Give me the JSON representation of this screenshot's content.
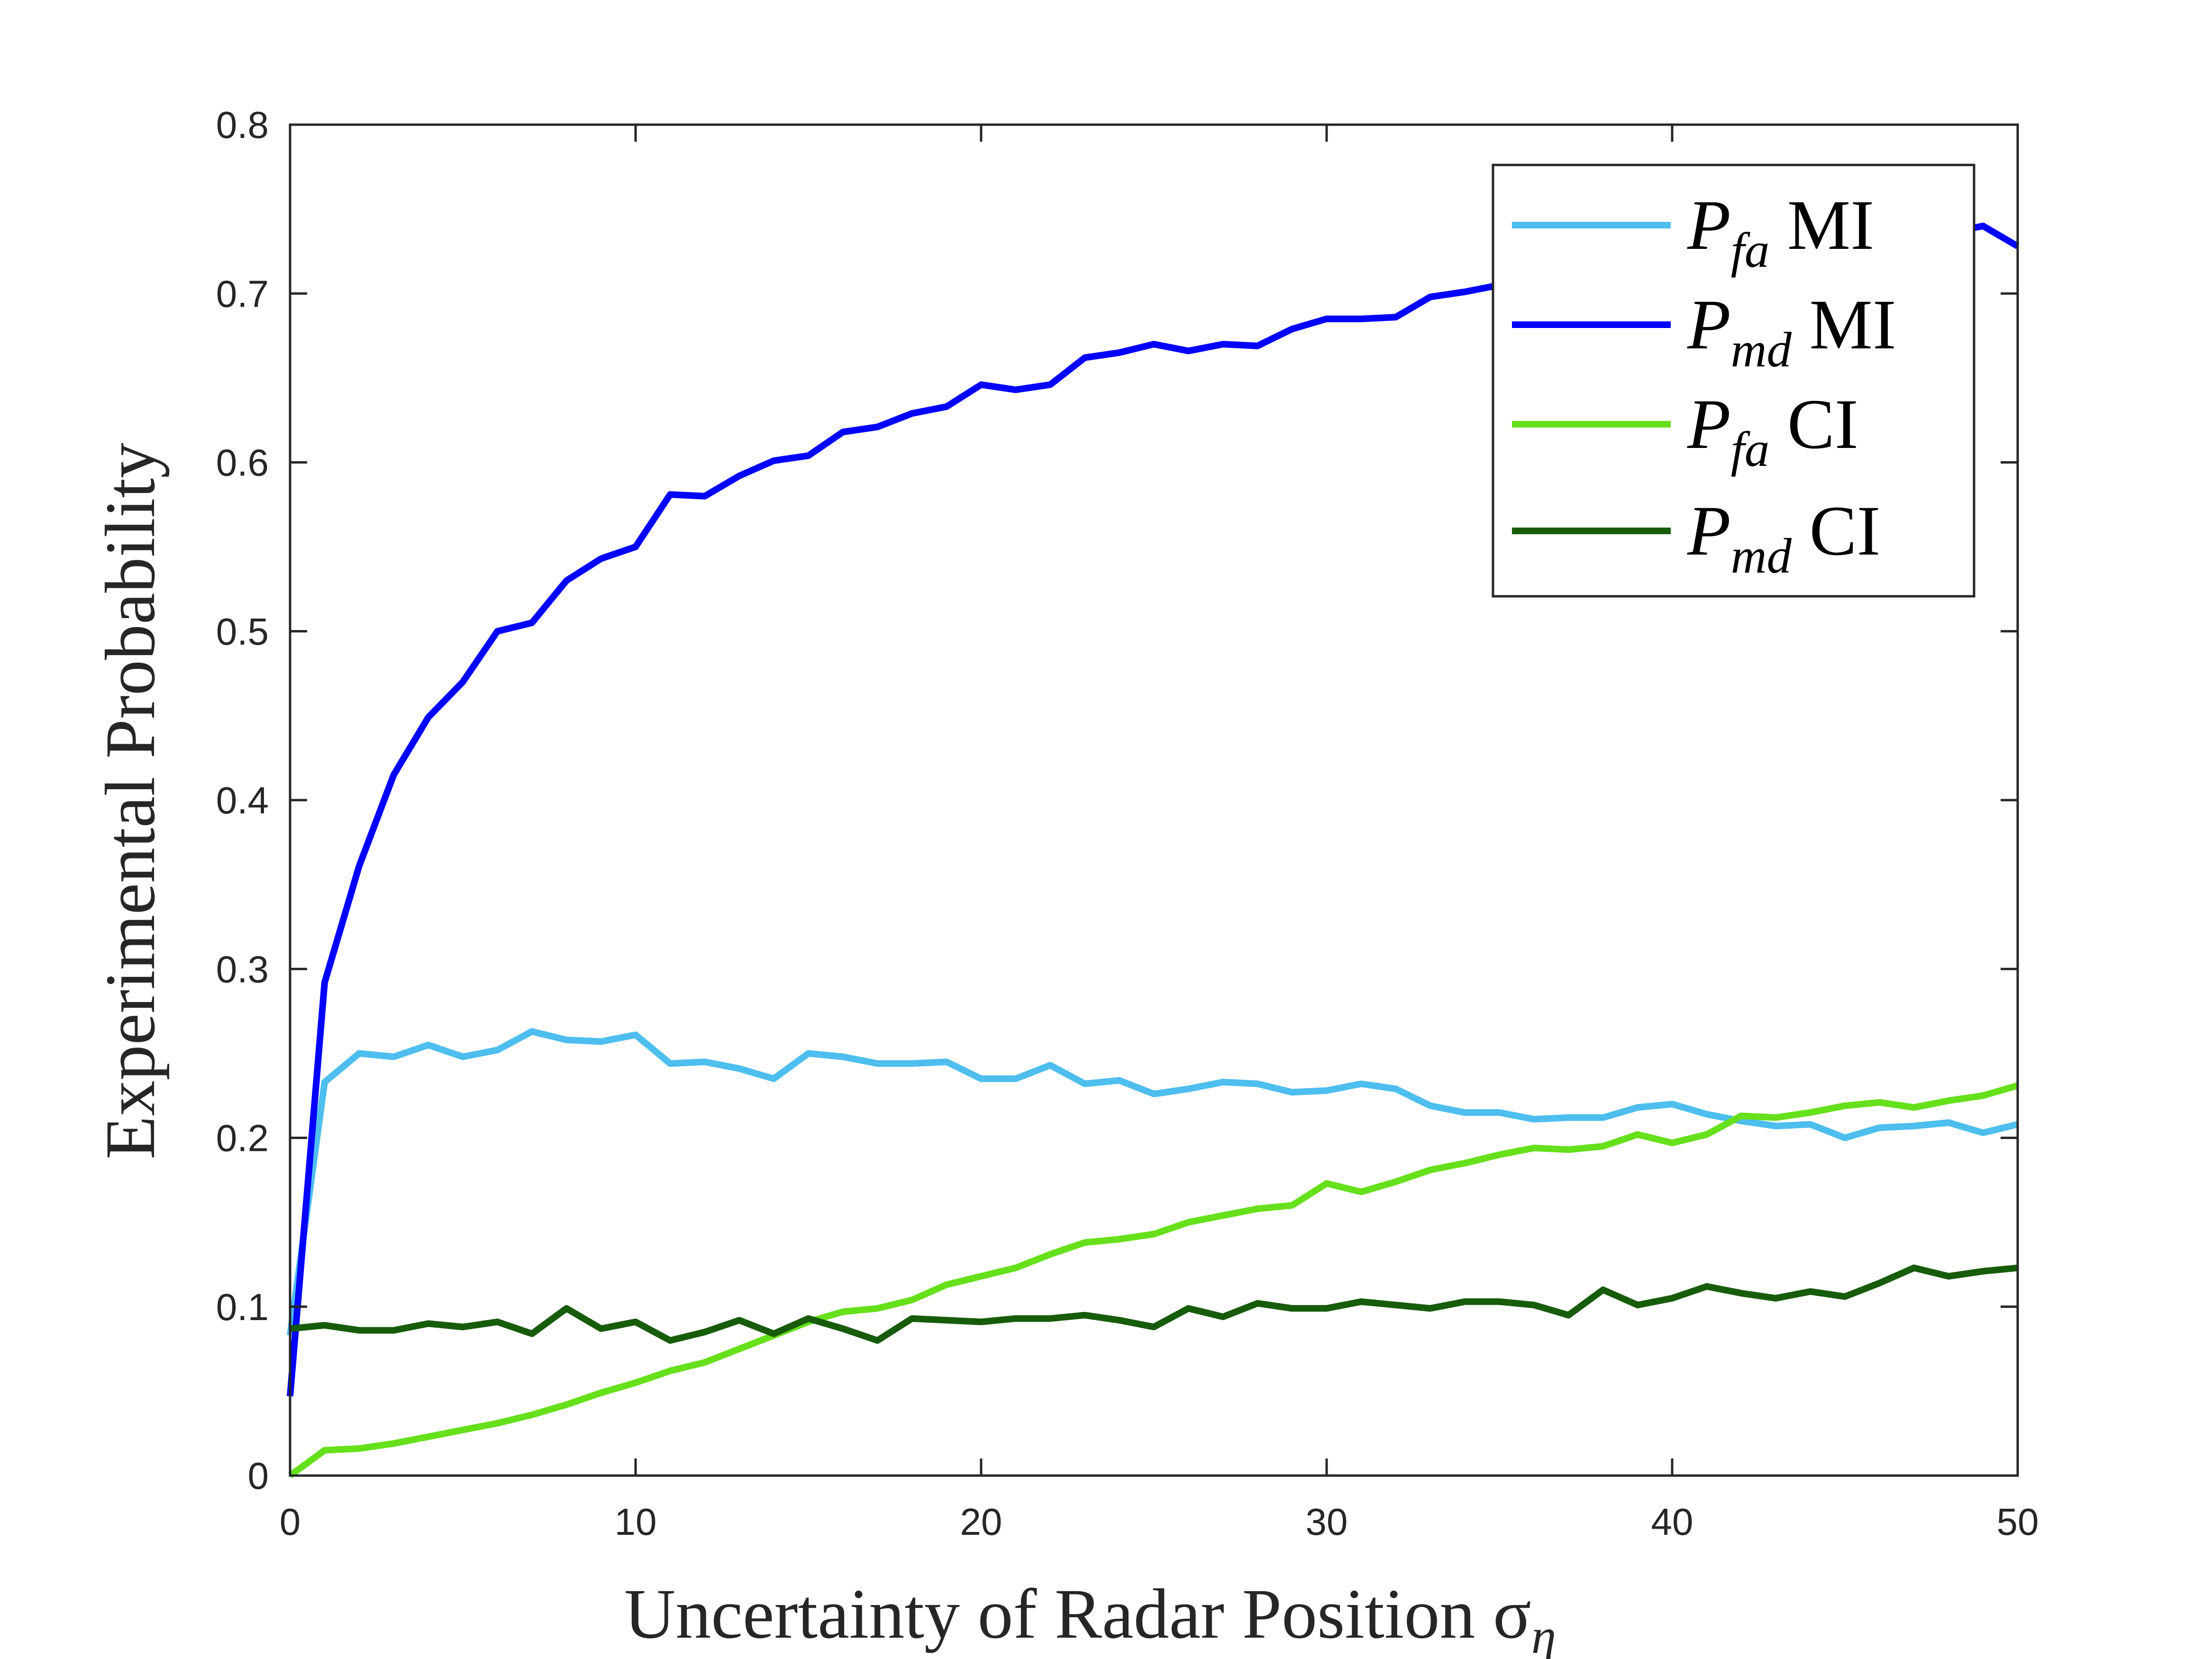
{
  "chart_data": {
    "type": "line",
    "title": "",
    "xlabel": "Uncertainty of Radar Position σ",
    "xlabel_subscript": "η",
    "ylabel": "Experimental Probability",
    "xlim": [
      0,
      50
    ],
    "ylim": [
      0,
      0.8
    ],
    "xticks": [
      0,
      10,
      20,
      30,
      40,
      50
    ],
    "yticks": [
      0,
      0.1,
      0.2,
      0.3,
      0.4,
      0.5,
      0.6,
      0.7,
      0.8
    ],
    "xtick_labels": [
      "0",
      "10",
      "20",
      "30",
      "40",
      "50"
    ],
    "ytick_labels": [
      "0",
      "0.1",
      "0.2",
      "0.3",
      "0.4",
      "0.5",
      "0.6",
      "0.7",
      "0.8"
    ],
    "grid": false,
    "legend_position": "top-right",
    "x": [
      0,
      1,
      2,
      3,
      4,
      5,
      6,
      7,
      8,
      9,
      10,
      11,
      12,
      13,
      14,
      15,
      16,
      17,
      18,
      19,
      20,
      21,
      22,
      23,
      24,
      25,
      26,
      27,
      28,
      29,
      30,
      31,
      32,
      33,
      34,
      35,
      36,
      37,
      38,
      39,
      40,
      41,
      42,
      43,
      44,
      45,
      46,
      47,
      48,
      49,
      50
    ],
    "series": [
      {
        "label_main": "P",
        "label_sub": "fa",
        "label_suffix": " MI",
        "color": "#4DBEEE",
        "values": [
          0.083,
          0.233,
          0.25,
          0.248,
          0.255,
          0.248,
          0.252,
          0.263,
          0.258,
          0.257,
          0.261,
          0.244,
          0.245,
          0.241,
          0.235,
          0.25,
          0.248,
          0.244,
          0.244,
          0.245,
          0.235,
          0.235,
          0.243,
          0.232,
          0.234,
          0.226,
          0.229,
          0.233,
          0.232,
          0.227,
          0.228,
          0.232,
          0.229,
          0.219,
          0.215,
          0.215,
          0.211,
          0.212,
          0.212,
          0.218,
          0.22,
          0.214,
          0.21,
          0.207,
          0.208,
          0.2,
          0.206,
          0.207,
          0.209,
          0.203,
          0.208
        ]
      },
      {
        "label_main": "P",
        "label_sub": "md",
        "label_suffix": " MI",
        "color": "#0000FF",
        "values": [
          0.047,
          0.292,
          0.361,
          0.415,
          0.449,
          0.47,
          0.5,
          0.505,
          0.53,
          0.543,
          0.55,
          0.581,
          0.58,
          0.592,
          0.601,
          0.604,
          0.618,
          0.621,
          0.629,
          0.633,
          0.646,
          0.643,
          0.646,
          0.662,
          0.665,
          0.67,
          0.666,
          0.67,
          0.669,
          0.679,
          0.685,
          0.685,
          0.686,
          0.698,
          0.701,
          0.705,
          0.709,
          0.711,
          0.713,
          0.716,
          0.718,
          0.72,
          0.722,
          0.724,
          0.726,
          0.728,
          0.73,
          0.733,
          0.736,
          0.74,
          0.728
        ]
      },
      {
        "label_main": "P",
        "label_sub": "fa",
        "label_suffix": " CI",
        "color": "#66E01A",
        "values": [
          0.0,
          0.015,
          0.016,
          0.019,
          0.023,
          0.027,
          0.031,
          0.036,
          0.042,
          0.049,
          0.055,
          0.062,
          0.067,
          0.075,
          0.083,
          0.091,
          0.097,
          0.099,
          0.104,
          0.113,
          0.118,
          0.123,
          0.131,
          0.138,
          0.14,
          0.143,
          0.15,
          0.154,
          0.158,
          0.16,
          0.173,
          0.168,
          0.174,
          0.181,
          0.185,
          0.19,
          0.194,
          0.193,
          0.195,
          0.202,
          0.197,
          0.202,
          0.213,
          0.212,
          0.215,
          0.219,
          0.221,
          0.218,
          0.222,
          0.225,
          0.231
        ]
      },
      {
        "label_main": "P",
        "label_sub": "md",
        "label_suffix": " CI",
        "color": "#175C0A",
        "values": [
          0.087,
          0.089,
          0.086,
          0.086,
          0.09,
          0.088,
          0.091,
          0.084,
          0.099,
          0.087,
          0.091,
          0.08,
          0.085,
          0.092,
          0.084,
          0.093,
          0.087,
          0.08,
          0.093,
          0.092,
          0.091,
          0.093,
          0.093,
          0.095,
          0.092,
          0.088,
          0.099,
          0.094,
          0.102,
          0.099,
          0.099,
          0.103,
          0.101,
          0.099,
          0.103,
          0.103,
          0.101,
          0.095,
          0.11,
          0.101,
          0.105,
          0.112,
          0.108,
          0.105,
          0.109,
          0.106,
          0.114,
          0.123,
          0.118,
          0.121,
          0.123
        ]
      }
    ]
  }
}
